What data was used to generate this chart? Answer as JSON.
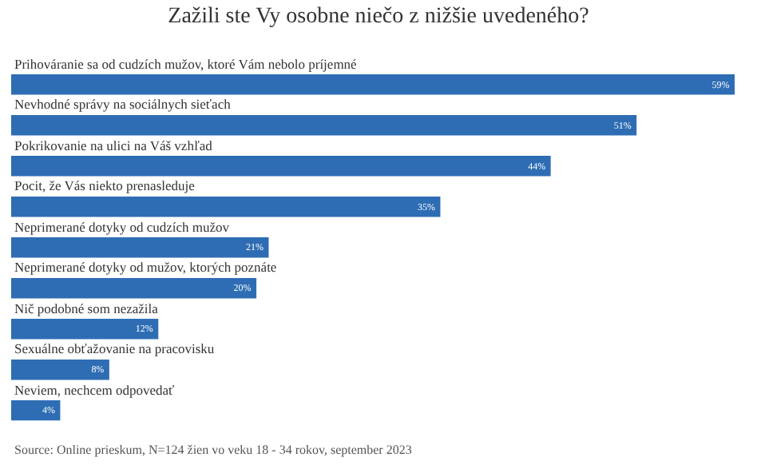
{
  "chart_data": {
    "type": "bar",
    "orientation": "horizontal",
    "title": "Zažili ste Vy osobne niečo z nižšie uvedeného?",
    "categories": [
      "Prihováranie sa od cudzích mužov, ktoré Vám nebolo príjemné",
      "Nevhodné správy na sociálnych sieťach",
      "Pokrikovanie na ulici na Váš vzhľad",
      "Pocit, že Vás niekto prenasleduje",
      "Neprimerané dotyky od cudzích mužov",
      "Neprimerané dotyky od mužov, ktorých poznáte",
      "Nič podobné som nezažila",
      "Sexuálne obťažovanie na pracovisku",
      "Neviem, nechcem odpovedať"
    ],
    "values": [
      59,
      51,
      44,
      35,
      21,
      20,
      12,
      8,
      4
    ],
    "value_labels": [
      "59%",
      "51%",
      "44%",
      "35%",
      "21%",
      "20%",
      "12%",
      "8%",
      "4%"
    ],
    "color": "#2e6db4",
    "annotations": [
      "Source: Online prieskum, N=124 žien vo veku 18 - 34 rokov, september 2023"
    ]
  }
}
